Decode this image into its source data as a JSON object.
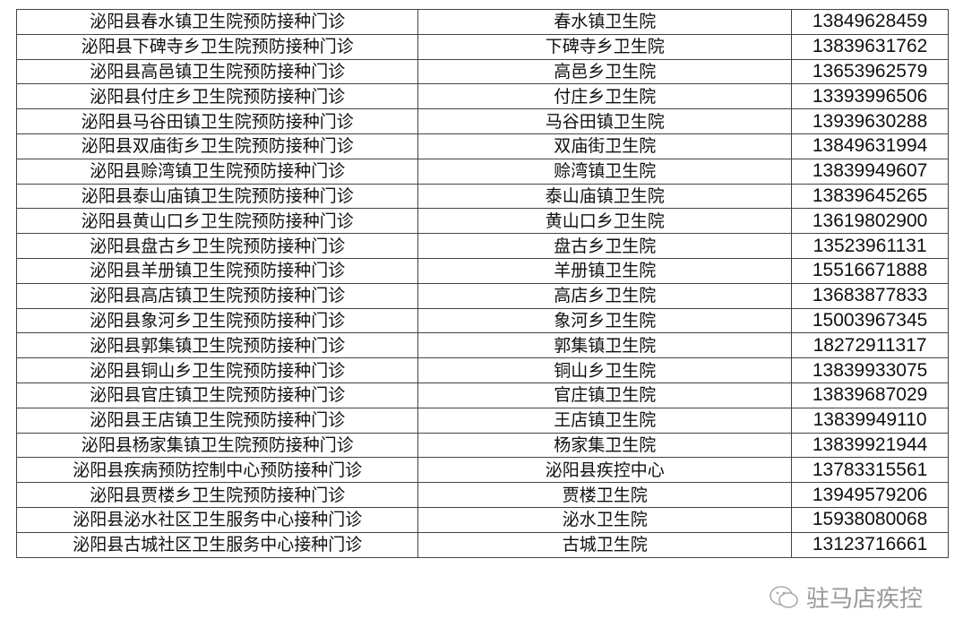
{
  "rows": [
    [
      "泌阳县春水镇卫生院预防接种门诊",
      "春水镇卫生院",
      "13849628459"
    ],
    [
      "泌阳县下碑寺乡卫生院预防接种门诊",
      "下碑寺乡卫生院",
      "13839631762"
    ],
    [
      "泌阳县高邑镇卫生院预防接种门诊",
      "高邑乡卫生院",
      "13653962579"
    ],
    [
      "泌阳县付庄乡卫生院预防接种门诊",
      "付庄乡卫生院",
      "13393996506"
    ],
    [
      "泌阳县马谷田镇卫生院预防接种门诊",
      "马谷田镇卫生院",
      "13939630288"
    ],
    [
      "泌阳县双庙街乡卫生院预防接种门诊",
      "双庙街卫生院",
      "13849631994"
    ],
    [
      "泌阳县赊湾镇卫生院预防接种门诊",
      "赊湾镇卫生院",
      "13839949607"
    ],
    [
      "泌阳县泰山庙镇卫生院预防接种门诊",
      "泰山庙镇卫生院",
      "13839645265"
    ],
    [
      "泌阳县黄山口乡卫生院预防接种门诊",
      "黄山口乡卫生院",
      "13619802900"
    ],
    [
      "泌阳县盘古乡卫生院预防接种门诊",
      "盘古乡卫生院",
      "13523961131"
    ],
    [
      "泌阳县羊册镇卫生院预防接种门诊",
      "羊册镇卫生院",
      "15516671888"
    ],
    [
      "泌阳县高店镇卫生院预防接种门诊",
      "高店乡卫生院",
      "13683877833"
    ],
    [
      "泌阳县象河乡卫生院预防接种门诊",
      "象河乡卫生院",
      "15003967345"
    ],
    [
      "泌阳县郭集镇卫生院预防接种门诊",
      "郭集镇卫生院",
      "18272911317"
    ],
    [
      "泌阳县铜山乡卫生院预防接种门诊",
      "铜山乡卫生院",
      "13839933075"
    ],
    [
      "泌阳县官庄镇卫生院预防接种门诊",
      "官庄镇卫生院",
      "13839687029"
    ],
    [
      "泌阳县王店镇卫生院预防接种门诊",
      "王店镇卫生院",
      "13839949110"
    ],
    [
      "泌阳县杨家集镇卫生院预防接种门诊",
      "杨家集卫生院",
      "13839921944"
    ],
    [
      "泌阳县疾病预防控制中心预防接种门诊",
      "泌阳县疾控中心",
      "13783315561"
    ],
    [
      "泌阳县贾楼乡卫生院预防接种门诊",
      "贾楼卫生院",
      "13949579206"
    ],
    [
      "泌阳县泌水社区卫生服务中心接种门诊",
      "泌水卫生院",
      "15938080068"
    ],
    [
      "泌阳县古城社区卫生服务中心接种门诊",
      "古城卫生院",
      "13123716661"
    ]
  ],
  "watermark": {
    "text": "驻马店疾控",
    "icon": "wechat-icon"
  }
}
